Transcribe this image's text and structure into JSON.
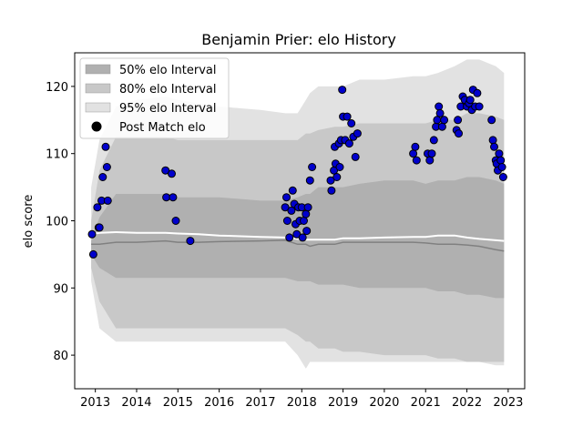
{
  "chart_data": {
    "type": "line",
    "title": "Benjamin Prier: elo History",
    "xlabel": "",
    "ylabel": "elo score",
    "xlim": [
      2012.5,
      2023.4
    ],
    "ylim": [
      75,
      125
    ],
    "x_ticks": [
      2013,
      2014,
      2015,
      2016,
      2017,
      2018,
      2019,
      2020,
      2021,
      2022,
      2023
    ],
    "y_ticks": [
      80,
      90,
      100,
      110,
      120
    ],
    "legend_position": "top-left",
    "grid": false,
    "colors": {
      "interval_50": "#b0b0b0",
      "interval_80": "#c8c8c8",
      "interval_95": "#e2e2e2",
      "median_line": "#808080",
      "mean_line": "#ffffff",
      "point_fill": "#0000cc",
      "point_edge": "#000000"
    },
    "legend": [
      {
        "label": "50% elo Interval",
        "kind": "patch50"
      },
      {
        "label": "80% elo Interval",
        "kind": "patch80"
      },
      {
        "label": "95% elo Interval",
        "kind": "patch95"
      },
      {
        "label": "Post Match elo",
        "kind": "marker"
      }
    ],
    "bands": {
      "x": [
        2012.9,
        2013.1,
        2013.5,
        2014.0,
        2014.7,
        2015.0,
        2015.5,
        2016.0,
        2017.0,
        2017.6,
        2017.9,
        2018.1,
        2018.2,
        2018.4,
        2018.8,
        2019.0,
        2019.4,
        2020.0,
        2020.7,
        2021.0,
        2021.3,
        2021.7,
        2022.0,
        2022.3,
        2022.7,
        2022.9
      ],
      "p95_upper": [
        105,
        112,
        117,
        118,
        118.5,
        118,
        117.5,
        117,
        116.5,
        116,
        116,
        118,
        119,
        120,
        120,
        120,
        121,
        121,
        121.5,
        121.5,
        122,
        123,
        124,
        124,
        123,
        122
      ],
      "p80_upper": [
        100,
        107.5,
        112.5,
        112.5,
        112.5,
        112,
        112,
        112,
        112,
        112,
        112,
        113,
        113,
        113.5,
        114,
        114,
        114.5,
        114.5,
        114.5,
        114.5,
        115,
        115,
        116,
        116,
        115.5,
        115
      ],
      "p50_upper": [
        97,
        100.5,
        104,
        104,
        104,
        103.5,
        103.5,
        103.5,
        103,
        103,
        103.5,
        104,
        104,
        105,
        105,
        105,
        105.5,
        106,
        106,
        105.5,
        106,
        106,
        106.5,
        106.5,
        106,
        105.5
      ],
      "p50_lower": [
        95,
        93,
        91.5,
        91.5,
        91.5,
        91.5,
        91.5,
        91.5,
        91.5,
        91.5,
        91,
        91,
        91,
        90.5,
        90.5,
        90.5,
        90,
        90,
        90,
        90,
        89.5,
        89.5,
        89,
        89,
        88.5,
        88.5
      ],
      "p80_lower": [
        93,
        88,
        84,
        84,
        84,
        84,
        84,
        84,
        84,
        84,
        83,
        82,
        82,
        81,
        81,
        80.5,
        80.5,
        80,
        80,
        80,
        79.5,
        79.5,
        79,
        79,
        79,
        79
      ],
      "p95_lower": [
        91,
        84,
        82,
        82,
        82,
        82,
        82,
        82,
        82,
        82,
        80,
        78,
        79,
        79,
        79,
        79,
        79,
        79,
        79,
        79,
        79,
        79,
        79,
        79,
        78.5,
        78.5
      ],
      "median": [
        96.5,
        96.5,
        96.8,
        96.8,
        97,
        96.8,
        96.8,
        96.9,
        97,
        97.1,
        96.5,
        96.5,
        96.2,
        96.5,
        96.5,
        96.8,
        96.8,
        96.8,
        96.8,
        96.7,
        96.5,
        96.5,
        96.4,
        96.2,
        95.7,
        95.5
      ],
      "mean": [
        98,
        98.2,
        98.3,
        98.2,
        98.2,
        98.1,
        98,
        97.8,
        97.6,
        97.5,
        97.3,
        97.2,
        97.2,
        97.2,
        97.2,
        97.4,
        97.4,
        97.5,
        97.6,
        97.6,
        97.8,
        97.8,
        97.5,
        97.3,
        97.1,
        97
      ]
    },
    "points": {
      "x": [
        2012.92,
        2012.95,
        2013.05,
        2013.08,
        2013.1,
        2013.15,
        2013.18,
        2013.25,
        2013.28,
        2013.3,
        2014.7,
        2014.72,
        2014.85,
        2014.88,
        2014.95,
        2015.3,
        2017.6,
        2017.63,
        2017.65,
        2017.7,
        2017.75,
        2017.78,
        2017.82,
        2017.85,
        2017.88,
        2017.92,
        2017.95,
        2018.0,
        2018.02,
        2018.05,
        2018.1,
        2018.12,
        2018.15,
        2018.2,
        2018.25,
        2018.7,
        2018.72,
        2018.78,
        2018.8,
        2018.82,
        2018.85,
        2018.9,
        2018.92,
        2018.95,
        2018.98,
        2019.0,
        2019.05,
        2019.1,
        2019.15,
        2019.2,
        2019.25,
        2019.3,
        2019.35,
        2020.7,
        2020.75,
        2020.78,
        2021.05,
        2021.1,
        2021.15,
        2021.2,
        2021.25,
        2021.28,
        2021.32,
        2021.35,
        2021.4,
        2021.45,
        2021.75,
        2021.78,
        2021.8,
        2021.85,
        2021.9,
        2021.95,
        2022.0,
        2022.05,
        2022.08,
        2022.12,
        2022.15,
        2022.2,
        2022.25,
        2022.3,
        2022.6,
        2022.63,
        2022.66,
        2022.7,
        2022.72,
        2022.75,
        2022.78,
        2022.82,
        2022.85,
        2022.88
      ],
      "y": [
        98,
        95,
        102,
        99,
        99,
        103,
        106.5,
        111,
        108,
        103,
        107.5,
        103.5,
        107,
        103.5,
        100,
        97,
        102,
        103.5,
        100,
        97.5,
        101.5,
        104.5,
        102.5,
        99.5,
        98,
        102,
        100,
        102,
        97.5,
        100,
        101,
        98.5,
        102,
        106,
        108,
        106,
        104.5,
        107.5,
        111,
        108.5,
        106.5,
        111.5,
        108,
        112,
        119.5,
        115.5,
        112,
        115.5,
        111.5,
        114.5,
        112.5,
        109.5,
        113,
        110,
        111,
        109,
        110,
        109,
        110,
        112,
        114,
        115,
        117,
        116,
        114,
        115,
        113.5,
        115,
        113,
        117,
        118.5,
        118,
        117,
        117.5,
        118,
        116.5,
        119.5,
        117,
        119,
        117,
        115,
        112,
        111,
        109,
        108.5,
        107.5,
        110,
        109,
        108,
        106.5
      ]
    }
  }
}
